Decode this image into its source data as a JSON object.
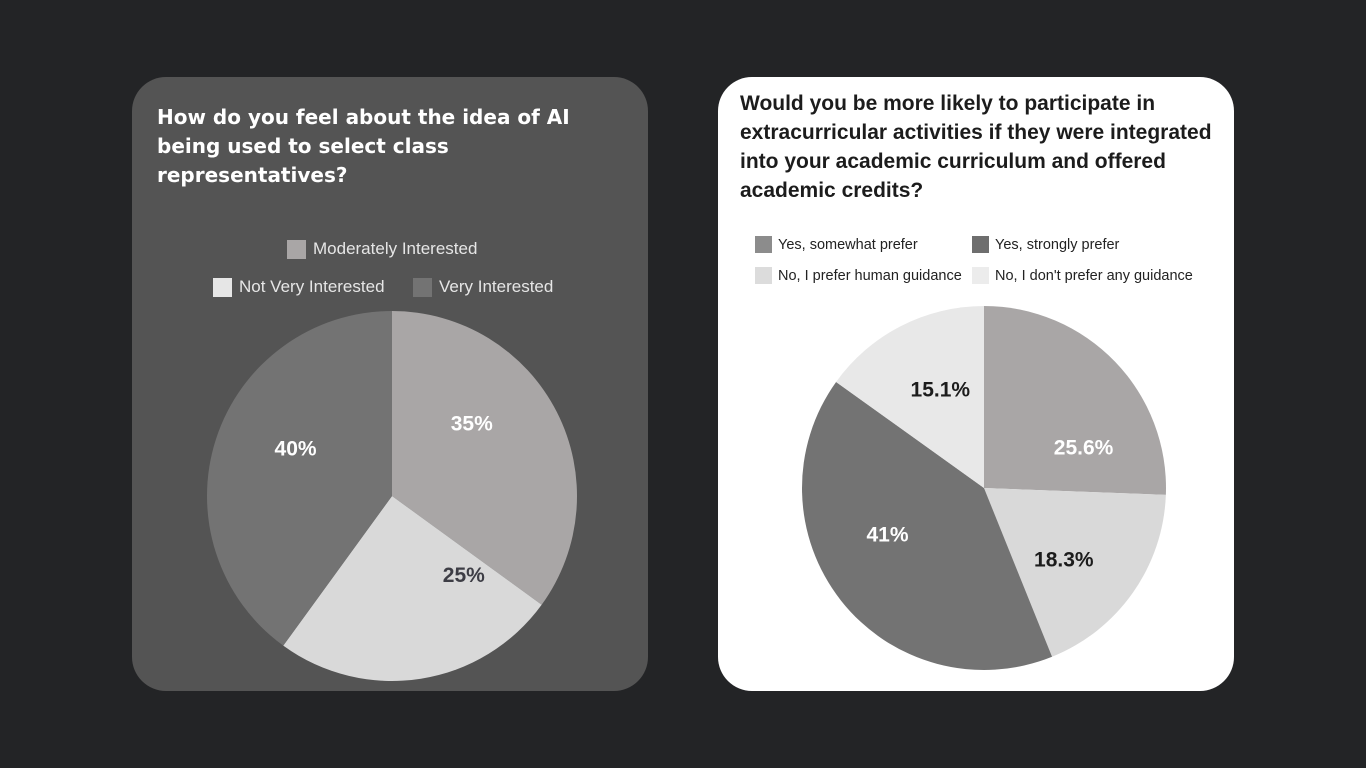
{
  "colors": {
    "background": "#232426",
    "card_left": "#545454",
    "card_right": "#ffffff"
  },
  "chart_data": [
    {
      "type": "pie",
      "title": "How do you feel about the idea of AI being used to select class representatives?",
      "legend": [
        "Moderately Interested",
        "Not Very Interested",
        "Very Interested"
      ],
      "legend_placement": "top",
      "slices": [
        {
          "name": "Moderately Interested",
          "value": 35,
          "label": "35%",
          "color": "#a9a6a6",
          "label_color": "#ffffff"
        },
        {
          "name": "Not Very Interested",
          "value": 25,
          "label": "25%",
          "color": "#d9d9d9",
          "label_color": "#3d3d45"
        },
        {
          "name": "Very Interested",
          "value": 40,
          "label": "40%",
          "color": "#737373",
          "label_color": "#ffffff"
        }
      ]
    },
    {
      "type": "pie",
      "title": "Would you be more likely to participate in extracurricular activities if they were integrated into your academic curriculum and offered academic credits?",
      "legend": [
        "Yes, somewhat prefer",
        "Yes, strongly prefer",
        "No, I prefer human guidance",
        "No, I don't prefer any guidance"
      ],
      "legend_placement": "top",
      "slices": [
        {
          "name": "Yes, somewhat prefer",
          "value": 25.6,
          "label": "25.6%",
          "color": "#a9a6a6",
          "label_color": "#ffffff"
        },
        {
          "name": "No, I prefer human guidance",
          "value": 18.3,
          "label": "18.3%",
          "color": "#d9d9d9",
          "label_color": "#1c1c1c"
        },
        {
          "name": "Yes, strongly prefer",
          "value": 41,
          "label": "41%",
          "color": "#737373",
          "label_color": "#ffffff"
        },
        {
          "name": "No, I don't prefer any guidance",
          "value": 15.1,
          "label": "15.1%",
          "color": "#e8e8e8",
          "label_color": "#1c1c1c"
        }
      ]
    }
  ]
}
